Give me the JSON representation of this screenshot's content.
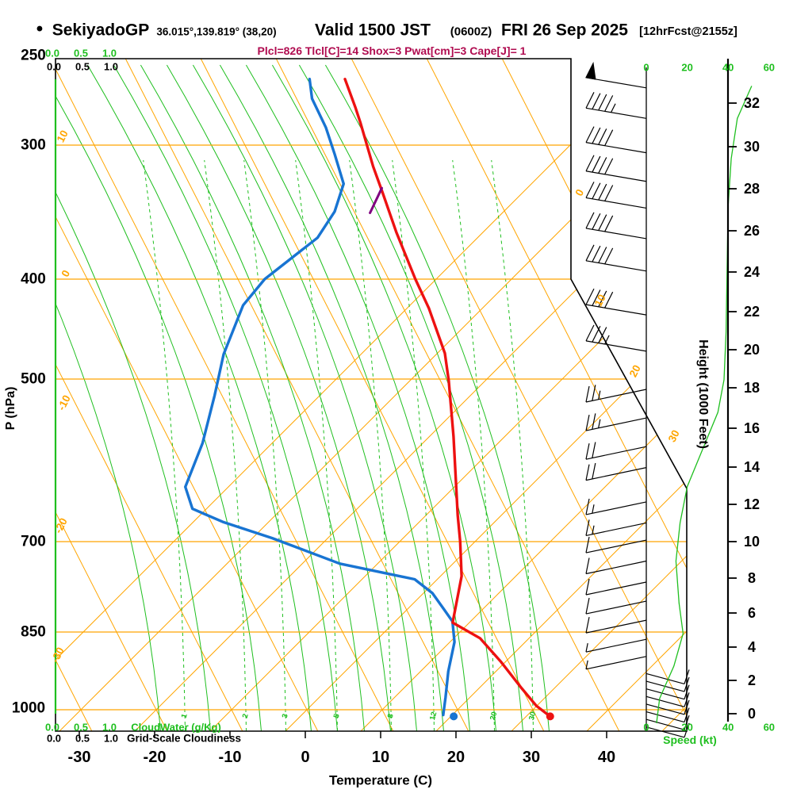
{
  "header": {
    "bullet": "•",
    "station": "SekiyadoGP",
    "coords": "36.015°,139.819° (38,20)",
    "valid": "Valid 1500 JST",
    "valid_z": "(0600Z)",
    "valid_date": "FRI 26 Sep 2025",
    "forecast": "[12hrFcst@2155z]",
    "stats": "Plcl=826 Tlcl[C]=14 Shox=3 Pwat[cm]=3 Cape[J]= 1"
  },
  "axes": {
    "pressure": {
      "title": "P (hPa)",
      "ticks": [
        250,
        300,
        400,
        500,
        700,
        850,
        1000
      ]
    },
    "temperature": {
      "title": "Temperature (C)",
      "ticks": [
        -30,
        -20,
        -10,
        0,
        10,
        20,
        30,
        40
      ]
    },
    "height": {
      "title": "Height (1000 Feet)",
      "ticks": [
        32,
        30,
        28,
        26,
        24,
        22,
        20,
        18,
        16,
        14,
        12,
        10,
        8,
        6,
        4,
        2,
        0
      ]
    },
    "speed": {
      "title": "Speed (kt)",
      "ticks": [
        0,
        20,
        40,
        60
      ]
    },
    "cloud": {
      "green_label": "CloudWater (g/Kg)",
      "black_label": "Grid-Scale Cloudiness",
      "scale": [
        "0.0",
        "0.5",
        "1.0"
      ]
    }
  },
  "grid_labels": {
    "isotherm_left": [
      "10",
      "0",
      "-10",
      "-20",
      "-30"
    ],
    "isotherm_right": [
      "0",
      "10",
      "20",
      "30"
    ],
    "mixing_ratio": [
      "1",
      "2",
      "3",
      "5",
      "8",
      "12",
      "20",
      "30"
    ]
  },
  "colors": {
    "orange": "#FFA500",
    "green": "#1FBF1F",
    "red": "#ED1111",
    "blue": "#1874D2",
    "magenta": "#B00C50",
    "purple": "#800080",
    "black": "#000000"
  },
  "chart_data": {
    "type": "skewt_logp_sounding",
    "title": "SekiyadoGP Valid 1500 JST (0600Z) FRI 26 Sep 2025 [12hrFcst@2155z]",
    "indices": {
      "Plcl_hPa": 826,
      "Tlcl_C": 14,
      "Shox": 3,
      "Pwat_cm": 3,
      "Cape_J": 1
    },
    "pressure_range_hPa": [
      250,
      1000
    ],
    "temperature_range_C": [
      -33,
      45
    ],
    "temperature_profile_p_T": [
      [
        261,
        -42.2
      ],
      [
        277,
        -38.7
      ],
      [
        286,
        -36.9
      ],
      [
        314,
        -31.9
      ],
      [
        332,
        -28.7
      ],
      [
        362,
        -23.8
      ],
      [
        400,
        -17.8
      ],
      [
        427,
        -13.8
      ],
      [
        472,
        -8.3
      ],
      [
        502,
        -5.7
      ],
      [
        563,
        -0.9
      ],
      [
        663,
        5.6
      ],
      [
        700,
        7.9
      ],
      [
        754,
        10.7
      ],
      [
        833,
        13.0
      ],
      [
        861,
        17.8
      ],
      [
        905,
        22.4
      ],
      [
        956,
        27.1
      ],
      [
        992,
        30.4
      ],
      [
        1014,
        33.0
      ]
    ],
    "dewpoint_profile_p_T": [
      [
        261,
        -46.9
      ],
      [
        272,
        -45.1
      ],
      [
        289,
        -41.1
      ],
      [
        306,
        -37.9
      ],
      [
        326,
        -34.5
      ],
      [
        346,
        -33.6
      ],
      [
        366,
        -33.9
      ],
      [
        400,
        -37.8
      ],
      [
        424,
        -38.7
      ],
      [
        473,
        -37.6
      ],
      [
        517,
        -35.7
      ],
      [
        571,
        -33.7
      ],
      [
        625,
        -32.7
      ],
      [
        654,
        -30.1
      ],
      [
        672,
        -25.1
      ],
      [
        695,
        -17.3
      ],
      [
        734,
        -6.4
      ],
      [
        759,
        4.7
      ],
      [
        782,
        8.1
      ],
      [
        809,
        10.8
      ],
      [
        831,
        12.9
      ],
      [
        868,
        14.7
      ],
      [
        923,
        16.1
      ],
      [
        975,
        17.7
      ],
      [
        1011,
        18.7
      ]
    ],
    "parcel_segment_p_T": [
      [
        347,
        -28.8
      ],
      [
        329,
        -29.1
      ]
    ],
    "surface_markers": {
      "temperature_dot": {
        "p": 1014,
        "T": 33.0
      },
      "dewpoint_dot": {
        "p": 1014,
        "T": 20.2
      }
    },
    "cloud_water_profile_gkg": 0,
    "wind_speed_profile_hkft_kt": [
      [
        32.9,
        51.5
      ],
      [
        31.2,
        44.5
      ],
      [
        29.1,
        41.5
      ],
      [
        26.6,
        40
      ],
      [
        23.3,
        39.5
      ],
      [
        20,
        39
      ],
      [
        17.5,
        38
      ],
      [
        15.8,
        35
      ],
      [
        14.5,
        30
      ],
      [
        11.9,
        20
      ],
      [
        10,
        16.5
      ],
      [
        8,
        14.5
      ],
      [
        5.8,
        16
      ],
      [
        4.2,
        18
      ],
      [
        2.5,
        13.5
      ],
      [
        0.8,
        6.5
      ],
      [
        -0.5,
        5
      ]
    ],
    "wind_barbs": [
      {
        "h_kft": 32.8,
        "kt": 50,
        "dir": "W"
      },
      {
        "h_kft": 31.2,
        "kt": 45,
        "dir": "W"
      },
      {
        "h_kft": 29.4,
        "kt": 40,
        "dir": "W"
      },
      {
        "h_kft": 27.9,
        "kt": 40,
        "dir": "W"
      },
      {
        "h_kft": 26.5,
        "kt": 40,
        "dir": "W"
      },
      {
        "h_kft": 24.9,
        "kt": 40,
        "dir": "W"
      },
      {
        "h_kft": 23.2,
        "kt": 40,
        "dir": "W"
      },
      {
        "h_kft": 20.9,
        "kt": 40,
        "dir": "W"
      },
      {
        "h_kft": 19.0,
        "kt": 35,
        "dir": "W"
      },
      {
        "h_kft": 17.0,
        "kt": 25,
        "dir": "W"
      },
      {
        "h_kft": 15.5,
        "kt": 25,
        "dir": "W"
      },
      {
        "h_kft": 14.0,
        "kt": 20,
        "dir": "W"
      },
      {
        "h_kft": 12.9,
        "kt": 20,
        "dir": "W"
      },
      {
        "h_kft": 11.1,
        "kt": 15,
        "dir": "W"
      },
      {
        "h_kft": 10.0,
        "kt": 15,
        "dir": "W"
      },
      {
        "h_kft": 9.1,
        "kt": 12,
        "dir": "W"
      },
      {
        "h_kft": 8.0,
        "kt": 10,
        "dir": "W"
      },
      {
        "h_kft": 6.9,
        "kt": 10,
        "dir": "W"
      },
      {
        "h_kft": 5.9,
        "kt": 8,
        "dir": "W"
      },
      {
        "h_kft": 4.9,
        "kt": 8,
        "dir": "W"
      },
      {
        "h_kft": 3.9,
        "kt": 7,
        "dir": "W"
      },
      {
        "h_kft": 3.0,
        "kt": 6,
        "dir": "W"
      },
      {
        "h_kft": 2.1,
        "kt": 10,
        "dir": "E"
      },
      {
        "h_kft": 1.7,
        "kt": 10,
        "dir": "E"
      },
      {
        "h_kft": 1.3,
        "kt": 10,
        "dir": "E"
      },
      {
        "h_kft": 0.9,
        "kt": 10,
        "dir": "E"
      },
      {
        "h_kft": 0.5,
        "kt": 10,
        "dir": "E"
      },
      {
        "h_kft": 0.1,
        "kt": 10,
        "dir": "E"
      },
      {
        "h_kft": -0.3,
        "kt": 10,
        "dir": "E"
      },
      {
        "h_kft": -0.7,
        "kt": 10,
        "dir": "E"
      }
    ],
    "legend_position": "none",
    "grid": true
  }
}
